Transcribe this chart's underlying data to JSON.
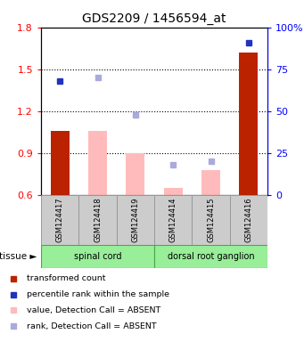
{
  "title": "GDS2209 / 1456594_at",
  "samples": [
    "GSM124417",
    "GSM124418",
    "GSM124419",
    "GSM124414",
    "GSM124415",
    "GSM124416"
  ],
  "tissue_groups": [
    {
      "label": "spinal cord",
      "start": 0,
      "end": 3
    },
    {
      "label": "dorsal root ganglion",
      "start": 3,
      "end": 6
    }
  ],
  "transformed_count": [
    1.06,
    null,
    null,
    null,
    null,
    1.62
  ],
  "percentile_rank": [
    68,
    null,
    null,
    null,
    null,
    91
  ],
  "value_absent": [
    null,
    1.06,
    0.9,
    0.65,
    0.78,
    null
  ],
  "rank_absent": [
    null,
    70,
    48,
    18,
    20,
    null
  ],
  "ylim_left": [
    0.6,
    1.8
  ],
  "ylim_right": [
    0,
    100
  ],
  "yticks_left": [
    0.6,
    0.9,
    1.2,
    1.5,
    1.8
  ],
  "yticks_right": [
    0,
    25,
    50,
    75,
    100
  ],
  "ytick_labels_right": [
    "0",
    "25",
    "50",
    "75",
    "100%"
  ],
  "hlines": [
    0.9,
    1.2,
    1.5
  ],
  "bar_width": 0.5,
  "color_red_bar": "#bb2200",
  "color_pink_bar": "#ffbbbb",
  "color_blue_square": "#2233bb",
  "color_lavender_square": "#aaaadd",
  "tissue_color": "#99ee99",
  "tissue_border_color": "#44aa44",
  "sample_box_color": "#cccccc",
  "sample_box_edge": "#999999",
  "label_transformed": "transformed count",
  "label_percentile": "percentile rank within the sample",
  "label_value_absent": "value, Detection Call = ABSENT",
  "label_rank_absent": "rank, Detection Call = ABSENT",
  "marker_size": 5
}
